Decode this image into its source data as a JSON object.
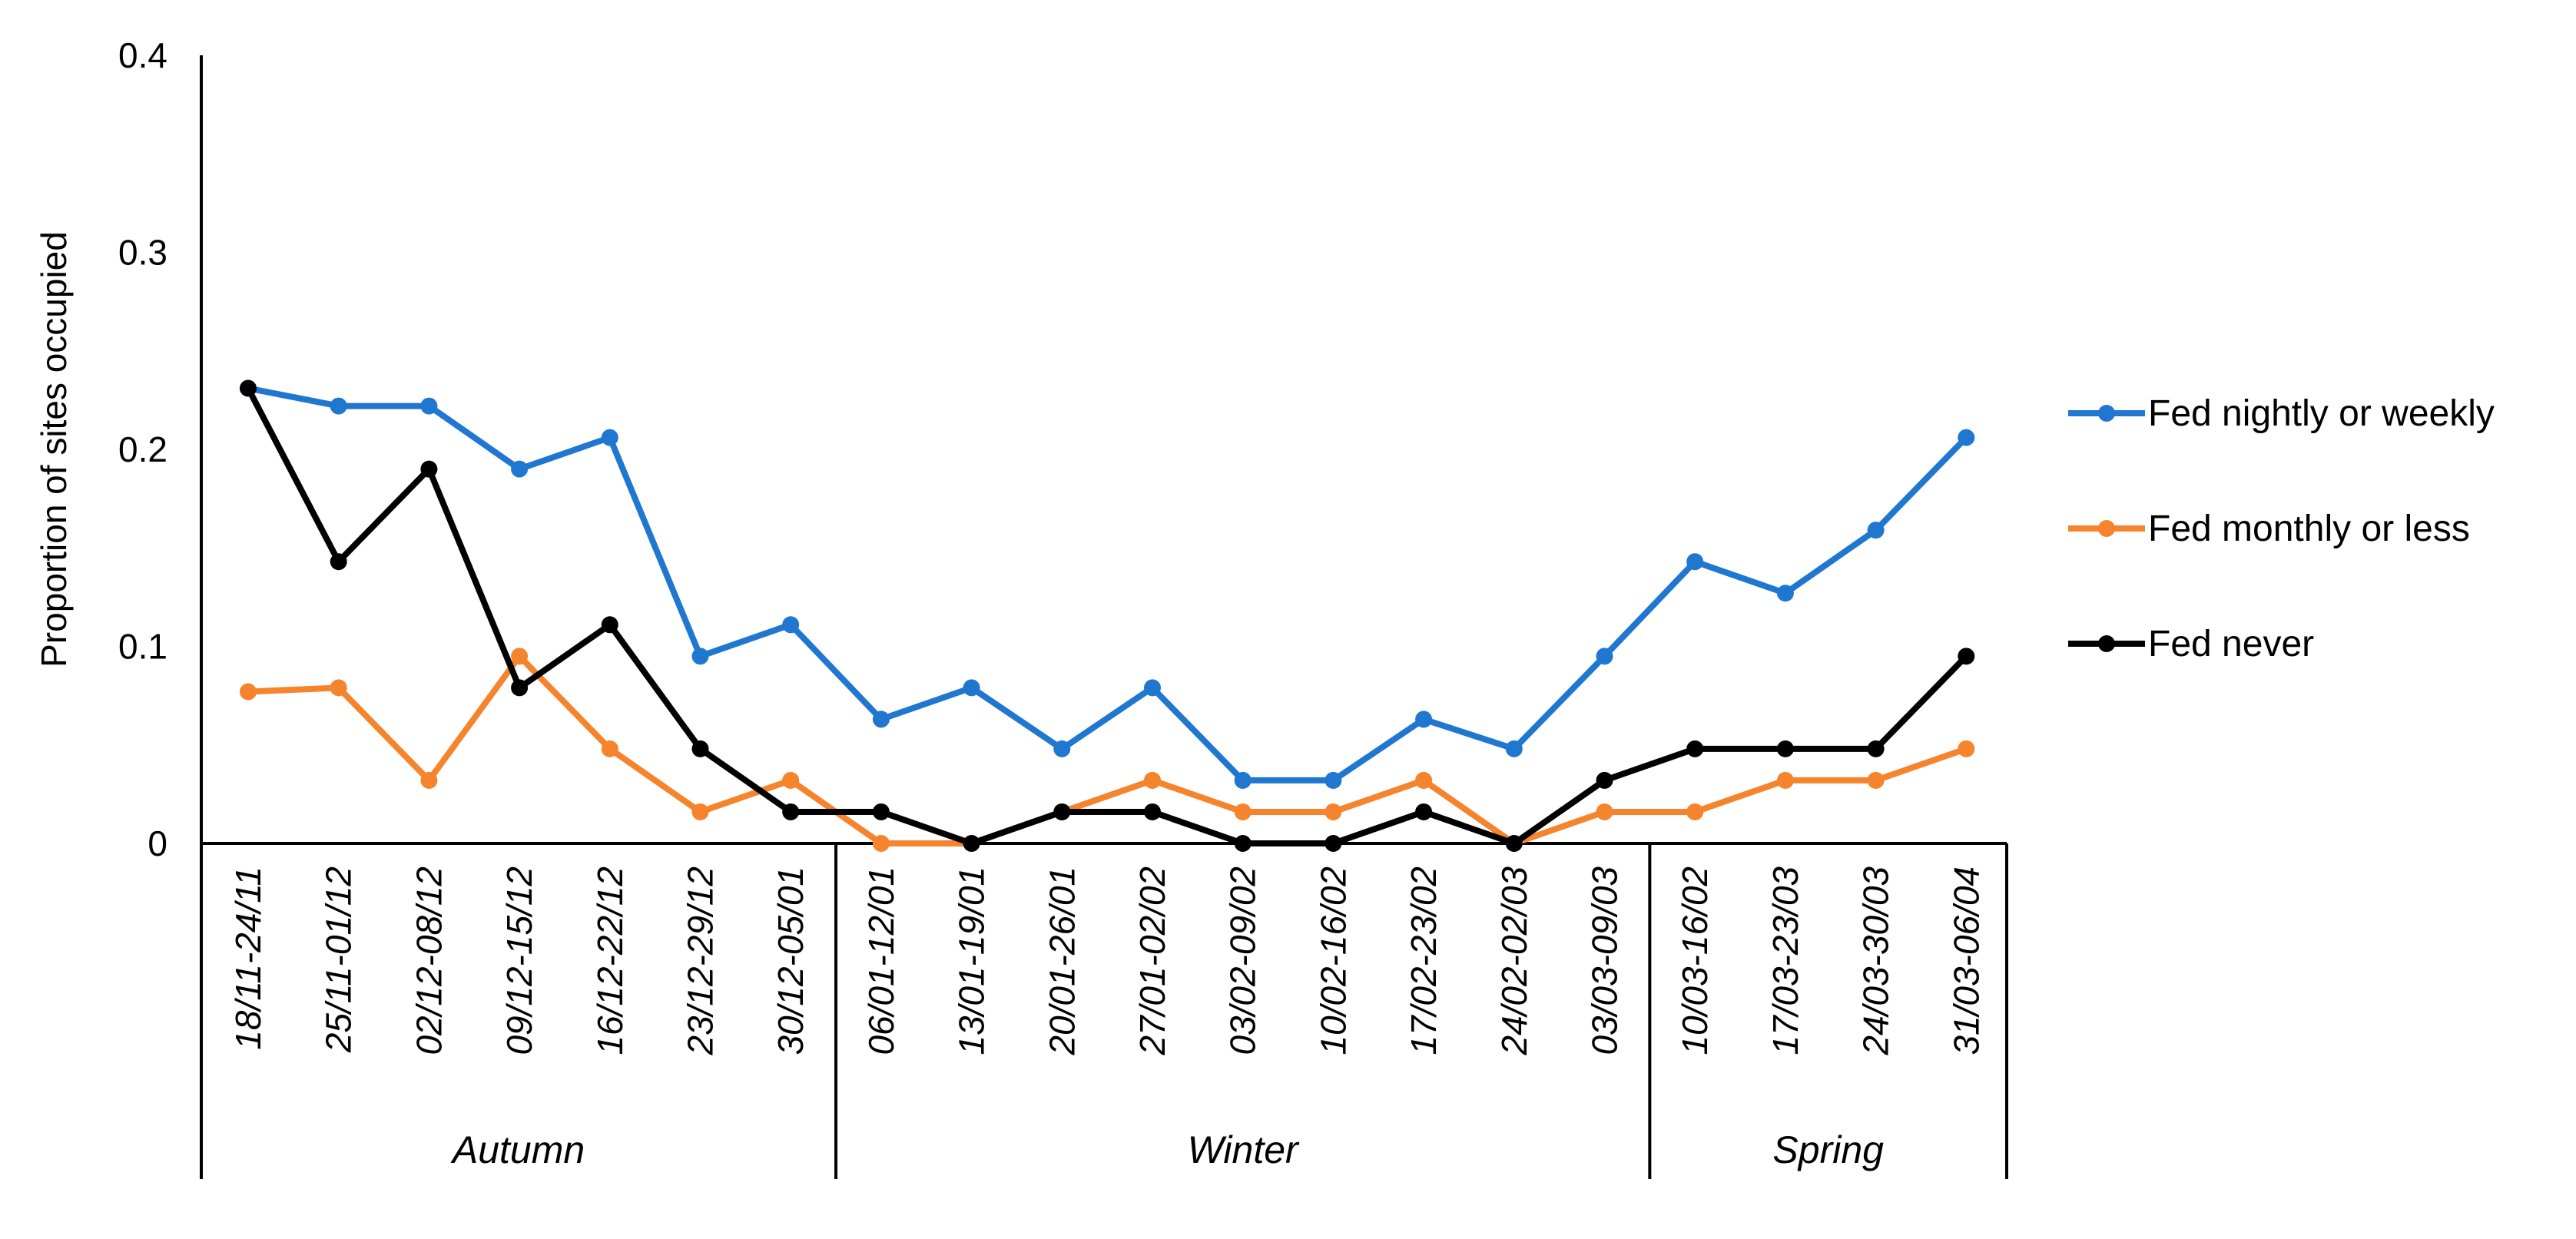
{
  "chart_data": {
    "type": "line",
    "title": "",
    "ylabel": "Proportion of sites occupied",
    "xlabel": "",
    "ylim": [
      0,
      0.4
    ],
    "yticks": [
      {
        "value": 0,
        "label": "0"
      },
      {
        "value": 0.1,
        "label": "0.1"
      },
      {
        "value": 0.2,
        "label": "0.2"
      },
      {
        "value": 0.3,
        "label": "0.3"
      },
      {
        "value": 0.4,
        "label": "0.4"
      }
    ],
    "grid": false,
    "legend_position": "right",
    "categories": [
      "18/11-24/11",
      "25/11-01/12",
      "02/12-08/12",
      "09/12-15/12",
      "16/12-22/12",
      "23/12-29/12",
      "30/12-05/01",
      "06/01-12/01",
      "13/01-19/01",
      "20/01-26/01",
      "27/01-02/02",
      "03/02-09/02",
      "10/02-16/02",
      "17/02-23/02",
      "24/02-02/03",
      "03/03-09/03",
      "10/03-16/02",
      "17/03-23/03",
      "24/03-30/03",
      "31/03-06/04"
    ],
    "groups": [
      {
        "label": "Autumn",
        "start": 0,
        "end": 6
      },
      {
        "label": "Winter",
        "start": 7,
        "end": 15
      },
      {
        "label": "Spring",
        "start": 16,
        "end": 19
      }
    ],
    "series": [
      {
        "name": "Fed nightly or weekly",
        "color": "#1f77d0",
        "values": [
          0.231,
          0.222,
          0.222,
          0.19,
          0.206,
          0.095,
          0.111,
          0.063,
          0.079,
          0.048,
          0.079,
          0.032,
          0.032,
          0.063,
          0.048,
          0.095,
          0.143,
          0.127,
          0.159,
          0.206
        ]
      },
      {
        "name": "Fed monthly or less",
        "color": "#f5842c",
        "values": [
          0.077,
          0.079,
          0.032,
          0.095,
          0.048,
          0.016,
          0.032,
          0.0,
          0.0,
          0.016,
          0.032,
          0.016,
          0.016,
          0.032,
          0.0,
          0.016,
          0.016,
          0.032,
          0.032,
          0.048
        ]
      },
      {
        "name": "Fed never",
        "color": "#000000",
        "values": [
          0.231,
          0.143,
          0.19,
          0.079,
          0.111,
          0.048,
          0.016,
          0.016,
          0.0,
          0.016,
          0.016,
          0.0,
          0.0,
          0.016,
          0.0,
          0.032,
          0.048,
          0.048,
          0.048,
          0.095
        ]
      }
    ]
  }
}
